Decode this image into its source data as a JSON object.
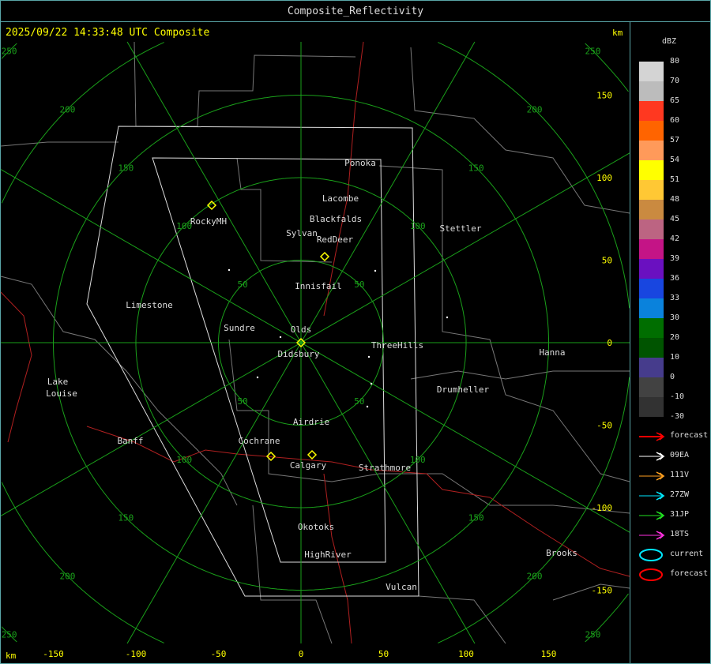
{
  "window_title": "Composite_Reflectivity",
  "headline": "2025/09/22 14:33:48 UTC Composite",
  "units": {
    "x_unit": "km",
    "y_unit": "km"
  },
  "x_ticks": [
    "-150",
    "-100",
    "-50",
    "0",
    "50",
    "100",
    "150"
  ],
  "y_ticks": [
    "150",
    "100",
    "50",
    "0",
    "-50",
    "-100",
    "-150"
  ],
  "range_rings_km": [
    50,
    100,
    150,
    200,
    250
  ],
  "ring_label_text": [
    "50",
    "100",
    "150",
    "200",
    "250"
  ],
  "cities": [
    "Ponoka",
    "Lacombe",
    "Blackfalds",
    "Sylvan",
    "RedDeer",
    "RockyMH",
    "Stettler",
    "Innisfail",
    "Limestone",
    "Sundre",
    "Olds",
    "Didsbury",
    "ThreeHills",
    "Hanna",
    "Lake",
    "Louise",
    "Drumheller",
    "Airdrie",
    "Banff",
    "Cochrane",
    "Calgary",
    "Strathmore",
    "Okotoks",
    "HighRiver",
    "Brooks",
    "Vulcan"
  ],
  "legend": {
    "title": "dBZ",
    "labels": [
      "80",
      "70",
      "65",
      "60",
      "57",
      "54",
      "51",
      "48",
      "45",
      "42",
      "39",
      "36",
      "33",
      "30",
      "20",
      "10",
      "0",
      "-10",
      "-30"
    ],
    "colors": [
      "#d4d4d4",
      "#bcbcbc",
      "#ff3820",
      "#ff6400",
      "#ff9a5a",
      "#ffff00",
      "#ffc834",
      "#ca8a40",
      "#bc6482",
      "#c41486",
      "#6a10c0",
      "#1846e0",
      "#0a82dc",
      "#006e00",
      "#005400",
      "#463c8c",
      "#424242",
      "#323232"
    ],
    "tracks": [
      {
        "label": "forecast",
        "color": "#ff0000",
        "icon": "arrow-icon"
      },
      {
        "label": "09EA",
        "color": "#ffffff",
        "icon": "arrow-icon"
      },
      {
        "label": "111V",
        "color": "#ffa020",
        "icon": "arrow-icon"
      },
      {
        "label": "27ZW",
        "color": "#00e8ff",
        "icon": "arrow-icon"
      },
      {
        "label": "31JP",
        "color": "#20e020",
        "icon": "arrow-icon"
      },
      {
        "label": "18TS",
        "color": "#ff30e0",
        "icon": "arrow-icon"
      },
      {
        "label": "current",
        "color": "#00e8ff",
        "icon": "ellipse-icon"
      },
      {
        "label": "forecast",
        "color": "#ff0000",
        "icon": "ellipse-icon"
      }
    ]
  }
}
